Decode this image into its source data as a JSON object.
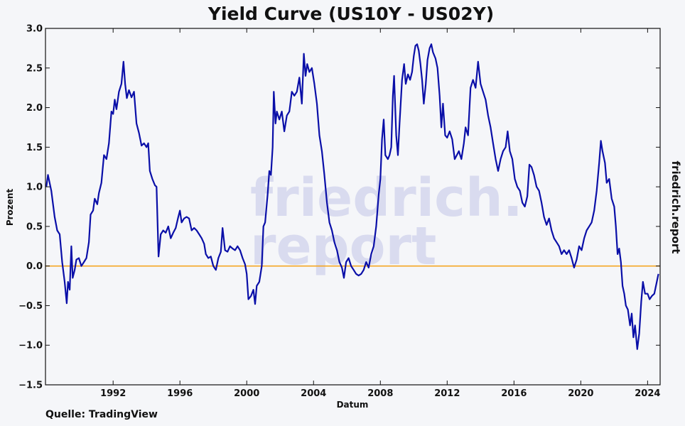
{
  "chart_data": {
    "type": "line",
    "title": "Yield Curve (US10Y - US02Y)",
    "xlabel": "Datum",
    "ylabel": "Prozent",
    "xlim": [
      1987.95,
      2024.75
    ],
    "ylim": [
      -1.5,
      3.0
    ],
    "x_ticks": [
      1992,
      1996,
      2000,
      2004,
      2008,
      2012,
      2016,
      2020,
      2024
    ],
    "y_ticks": [
      -1.5,
      -1.0,
      -0.5,
      0.0,
      0.5,
      1.0,
      1.5,
      2.0,
      2.5,
      3.0
    ],
    "y_tick_labels": [
      "−1.5",
      "−1.0",
      "−0.5",
      "0.0",
      "0.5",
      "1.0",
      "1.5",
      "2.0",
      "2.5",
      "3.0"
    ],
    "grid": false,
    "reference_line": {
      "y": 0.0,
      "color": "#f5a623"
    },
    "series": [
      {
        "color": "#0a0fa8",
        "points": [
          [
            1988.0,
            1.0
          ],
          [
            1988.1,
            1.15
          ],
          [
            1988.3,
            0.95
          ],
          [
            1988.5,
            0.62
          ],
          [
            1988.65,
            0.45
          ],
          [
            1988.8,
            0.4
          ],
          [
            1988.95,
            0.05
          ],
          [
            1989.1,
            -0.2
          ],
          [
            1989.22,
            -0.47
          ],
          [
            1989.3,
            -0.2
          ],
          [
            1989.4,
            -0.3
          ],
          [
            1989.5,
            0.25
          ],
          [
            1989.58,
            -0.15
          ],
          [
            1989.7,
            -0.05
          ],
          [
            1989.8,
            0.08
          ],
          [
            1989.95,
            0.1
          ],
          [
            1990.1,
            0.0
          ],
          [
            1990.25,
            0.05
          ],
          [
            1990.4,
            0.1
          ],
          [
            1990.55,
            0.3
          ],
          [
            1990.65,
            0.65
          ],
          [
            1990.8,
            0.7
          ],
          [
            1990.9,
            0.85
          ],
          [
            1991.05,
            0.78
          ],
          [
            1991.15,
            0.92
          ],
          [
            1991.3,
            1.05
          ],
          [
            1991.45,
            1.4
          ],
          [
            1991.6,
            1.35
          ],
          [
            1991.75,
            1.55
          ],
          [
            1991.9,
            1.95
          ],
          [
            1992.0,
            1.92
          ],
          [
            1992.1,
            2.1
          ],
          [
            1992.2,
            1.98
          ],
          [
            1992.35,
            2.2
          ],
          [
            1992.5,
            2.3
          ],
          [
            1992.62,
            2.58
          ],
          [
            1992.72,
            2.3
          ],
          [
            1992.82,
            2.12
          ],
          [
            1992.95,
            2.22
          ],
          [
            1993.1,
            2.13
          ],
          [
            1993.25,
            2.2
          ],
          [
            1993.4,
            1.8
          ],
          [
            1993.55,
            1.68
          ],
          [
            1993.7,
            1.52
          ],
          [
            1993.85,
            1.55
          ],
          [
            1994.0,
            1.5
          ],
          [
            1994.1,
            1.55
          ],
          [
            1994.2,
            1.2
          ],
          [
            1994.35,
            1.1
          ],
          [
            1994.5,
            1.02
          ],
          [
            1994.6,
            1.0
          ],
          [
            1994.72,
            0.12
          ],
          [
            1994.85,
            0.4
          ],
          [
            1995.0,
            0.45
          ],
          [
            1995.15,
            0.42
          ],
          [
            1995.3,
            0.5
          ],
          [
            1995.45,
            0.35
          ],
          [
            1995.6,
            0.42
          ],
          [
            1995.75,
            0.48
          ],
          [
            1995.9,
            0.62
          ],
          [
            1996.0,
            0.7
          ],
          [
            1996.1,
            0.55
          ],
          [
            1996.25,
            0.6
          ],
          [
            1996.4,
            0.62
          ],
          [
            1996.55,
            0.6
          ],
          [
            1996.7,
            0.45
          ],
          [
            1996.85,
            0.48
          ],
          [
            1997.0,
            0.45
          ],
          [
            1997.15,
            0.4
          ],
          [
            1997.3,
            0.35
          ],
          [
            1997.45,
            0.28
          ],
          [
            1997.55,
            0.15
          ],
          [
            1997.7,
            0.1
          ],
          [
            1997.85,
            0.12
          ],
          [
            1998.0,
            0.0
          ],
          [
            1998.15,
            -0.05
          ],
          [
            1998.3,
            0.1
          ],
          [
            1998.45,
            0.18
          ],
          [
            1998.55,
            0.48
          ],
          [
            1998.7,
            0.2
          ],
          [
            1998.85,
            0.18
          ],
          [
            1999.0,
            0.25
          ],
          [
            1999.15,
            0.22
          ],
          [
            1999.3,
            0.2
          ],
          [
            1999.45,
            0.25
          ],
          [
            1999.6,
            0.2
          ],
          [
            1999.75,
            0.1
          ],
          [
            1999.9,
            0.02
          ],
          [
            2000.0,
            -0.1
          ],
          [
            2000.1,
            -0.42
          ],
          [
            2000.25,
            -0.38
          ],
          [
            2000.4,
            -0.3
          ],
          [
            2000.5,
            -0.48
          ],
          [
            2000.6,
            -0.25
          ],
          [
            2000.75,
            -0.2
          ],
          [
            2000.9,
            0.0
          ],
          [
            2001.0,
            0.5
          ],
          [
            2001.1,
            0.55
          ],
          [
            2001.25,
            0.9
          ],
          [
            2001.35,
            1.2
          ],
          [
            2001.45,
            1.15
          ],
          [
            2001.55,
            1.5
          ],
          [
            2001.62,
            2.2
          ],
          [
            2001.72,
            1.8
          ],
          [
            2001.8,
            1.95
          ],
          [
            2001.95,
            1.85
          ],
          [
            2002.1,
            1.95
          ],
          [
            2002.25,
            1.7
          ],
          [
            2002.4,
            1.9
          ],
          [
            2002.55,
            1.95
          ],
          [
            2002.7,
            2.2
          ],
          [
            2002.85,
            2.15
          ],
          [
            2003.0,
            2.2
          ],
          [
            2003.15,
            2.38
          ],
          [
            2003.3,
            2.05
          ],
          [
            2003.42,
            2.68
          ],
          [
            2003.52,
            2.4
          ],
          [
            2003.62,
            2.55
          ],
          [
            2003.75,
            2.45
          ],
          [
            2003.9,
            2.5
          ],
          [
            2004.05,
            2.3
          ],
          [
            2004.2,
            2.05
          ],
          [
            2004.35,
            1.65
          ],
          [
            2004.5,
            1.45
          ],
          [
            2004.65,
            1.15
          ],
          [
            2004.8,
            0.8
          ],
          [
            2004.95,
            0.55
          ],
          [
            2005.1,
            0.45
          ],
          [
            2005.25,
            0.3
          ],
          [
            2005.4,
            0.2
          ],
          [
            2005.55,
            0.05
          ],
          [
            2005.7,
            -0.02
          ],
          [
            2005.82,
            -0.15
          ],
          [
            2005.95,
            0.05
          ],
          [
            2006.1,
            0.1
          ],
          [
            2006.25,
            0.0
          ],
          [
            2006.4,
            -0.05
          ],
          [
            2006.55,
            -0.1
          ],
          [
            2006.7,
            -0.12
          ],
          [
            2006.85,
            -0.1
          ],
          [
            2007.0,
            -0.05
          ],
          [
            2007.15,
            0.05
          ],
          [
            2007.3,
            -0.02
          ],
          [
            2007.45,
            0.15
          ],
          [
            2007.6,
            0.25
          ],
          [
            2007.75,
            0.5
          ],
          [
            2007.9,
            0.9
          ],
          [
            2008.0,
            1.1
          ],
          [
            2008.1,
            1.6
          ],
          [
            2008.2,
            1.85
          ],
          [
            2008.3,
            1.4
          ],
          [
            2008.45,
            1.35
          ],
          [
            2008.55,
            1.4
          ],
          [
            2008.65,
            1.5
          ],
          [
            2008.75,
            2.15
          ],
          [
            2008.82,
            2.4
          ],
          [
            2008.95,
            1.65
          ],
          [
            2009.05,
            1.4
          ],
          [
            2009.15,
            1.8
          ],
          [
            2009.3,
            2.35
          ],
          [
            2009.42,
            2.55
          ],
          [
            2009.52,
            2.3
          ],
          [
            2009.65,
            2.42
          ],
          [
            2009.78,
            2.35
          ],
          [
            2009.9,
            2.45
          ],
          [
            2010.0,
            2.65
          ],
          [
            2010.1,
            2.78
          ],
          [
            2010.2,
            2.8
          ],
          [
            2010.3,
            2.72
          ],
          [
            2010.4,
            2.55
          ],
          [
            2010.5,
            2.35
          ],
          [
            2010.6,
            2.05
          ],
          [
            2010.72,
            2.3
          ],
          [
            2010.82,
            2.6
          ],
          [
            2010.95,
            2.75
          ],
          [
            2011.05,
            2.8
          ],
          [
            2011.15,
            2.7
          ],
          [
            2011.3,
            2.62
          ],
          [
            2011.42,
            2.5
          ],
          [
            2011.55,
            2.15
          ],
          [
            2011.65,
            1.75
          ],
          [
            2011.75,
            2.05
          ],
          [
            2011.88,
            1.65
          ],
          [
            2012.0,
            1.62
          ],
          [
            2012.15,
            1.7
          ],
          [
            2012.3,
            1.6
          ],
          [
            2012.45,
            1.35
          ],
          [
            2012.58,
            1.4
          ],
          [
            2012.7,
            1.45
          ],
          [
            2012.85,
            1.35
          ],
          [
            2013.0,
            1.55
          ],
          [
            2013.1,
            1.75
          ],
          [
            2013.25,
            1.65
          ],
          [
            2013.4,
            2.25
          ],
          [
            2013.55,
            2.35
          ],
          [
            2013.7,
            2.25
          ],
          [
            2013.85,
            2.58
          ],
          [
            2014.0,
            2.3
          ],
          [
            2014.15,
            2.2
          ],
          [
            2014.3,
            2.1
          ],
          [
            2014.45,
            1.9
          ],
          [
            2014.6,
            1.75
          ],
          [
            2014.75,
            1.55
          ],
          [
            2014.9,
            1.35
          ],
          [
            2015.05,
            1.2
          ],
          [
            2015.2,
            1.35
          ],
          [
            2015.35,
            1.45
          ],
          [
            2015.5,
            1.5
          ],
          [
            2015.62,
            1.7
          ],
          [
            2015.75,
            1.45
          ],
          [
            2015.9,
            1.35
          ],
          [
            2016.05,
            1.1
          ],
          [
            2016.2,
            1.0
          ],
          [
            2016.35,
            0.95
          ],
          [
            2016.5,
            0.8
          ],
          [
            2016.65,
            0.75
          ],
          [
            2016.8,
            0.88
          ],
          [
            2016.92,
            1.28
          ],
          [
            2017.05,
            1.25
          ],
          [
            2017.2,
            1.15
          ],
          [
            2017.35,
            1.0
          ],
          [
            2017.5,
            0.95
          ],
          [
            2017.65,
            0.8
          ],
          [
            2017.8,
            0.62
          ],
          [
            2017.95,
            0.52
          ],
          [
            2018.1,
            0.6
          ],
          [
            2018.25,
            0.45
          ],
          [
            2018.4,
            0.35
          ],
          [
            2018.55,
            0.3
          ],
          [
            2018.7,
            0.25
          ],
          [
            2018.85,
            0.15
          ],
          [
            2019.0,
            0.2
          ],
          [
            2019.15,
            0.15
          ],
          [
            2019.3,
            0.2
          ],
          [
            2019.45,
            0.1
          ],
          [
            2019.6,
            -0.02
          ],
          [
            2019.75,
            0.08
          ],
          [
            2019.9,
            0.25
          ],
          [
            2020.05,
            0.2
          ],
          [
            2020.2,
            0.35
          ],
          [
            2020.35,
            0.45
          ],
          [
            2020.5,
            0.5
          ],
          [
            2020.65,
            0.55
          ],
          [
            2020.8,
            0.7
          ],
          [
            2020.95,
            0.95
          ],
          [
            2021.1,
            1.3
          ],
          [
            2021.2,
            1.58
          ],
          [
            2021.3,
            1.45
          ],
          [
            2021.45,
            1.3
          ],
          [
            2021.55,
            1.05
          ],
          [
            2021.7,
            1.1
          ],
          [
            2021.85,
            0.85
          ],
          [
            2022.0,
            0.75
          ],
          [
            2022.1,
            0.5
          ],
          [
            2022.2,
            0.15
          ],
          [
            2022.3,
            0.22
          ],
          [
            2022.4,
            0.05
          ],
          [
            2022.5,
            -0.25
          ],
          [
            2022.6,
            -0.35
          ],
          [
            2022.7,
            -0.5
          ],
          [
            2022.82,
            -0.55
          ],
          [
            2022.95,
            -0.75
          ],
          [
            2023.05,
            -0.6
          ],
          [
            2023.15,
            -0.9
          ],
          [
            2023.25,
            -0.75
          ],
          [
            2023.38,
            -1.05
          ],
          [
            2023.5,
            -0.85
          ],
          [
            2023.62,
            -0.45
          ],
          [
            2023.72,
            -0.2
          ],
          [
            2023.85,
            -0.35
          ],
          [
            2024.0,
            -0.35
          ],
          [
            2024.12,
            -0.42
          ],
          [
            2024.25,
            -0.38
          ],
          [
            2024.4,
            -0.35
          ],
          [
            2024.55,
            -0.2
          ],
          [
            2024.65,
            -0.1
          ]
        ]
      }
    ]
  },
  "footer": {
    "source": "Quelle: TradingView",
    "brand_side": "friedrich.report",
    "watermark_line1": "friedrich.",
    "watermark_line2": "report"
  },
  "colors": {
    "background": "#f5f6f9",
    "line": "#0a0fa8",
    "zero_line": "#f5a623",
    "watermark": "#d9dbef"
  }
}
